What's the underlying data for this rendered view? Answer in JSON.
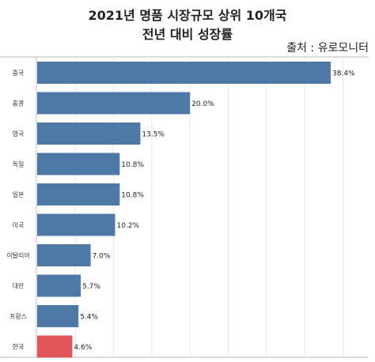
{
  "chart_data": {
    "type": "bar",
    "orientation": "horizontal",
    "title": "2021년 명품 시장규모 상위 10개국",
    "subtitle": "전년 대비 성장률",
    "source": "출처 : 유로모니터",
    "categories": [
      "중국",
      "홍콩",
      "영국",
      "독일",
      "일본",
      "미국",
      "이탈리아",
      "대만",
      "프랑스",
      "한국"
    ],
    "values": [
      38.4,
      20.0,
      13.5,
      10.8,
      10.8,
      10.2,
      7.0,
      5.7,
      5.4,
      4.6
    ],
    "value_labels": [
      "38.4%",
      "20.0%",
      "13.5%",
      "10.8%",
      "10.8%",
      "10.2%",
      "7.0%",
      "5.7%",
      "5.4%",
      "4.6%"
    ],
    "xlim": [
      0,
      45
    ],
    "grid": true,
    "colors": {
      "bar": "#4e79a7",
      "highlight": "#e15759",
      "grid": "#e6e6e6",
      "axis": "#bdbdbd"
    },
    "highlight_category": "한국"
  }
}
